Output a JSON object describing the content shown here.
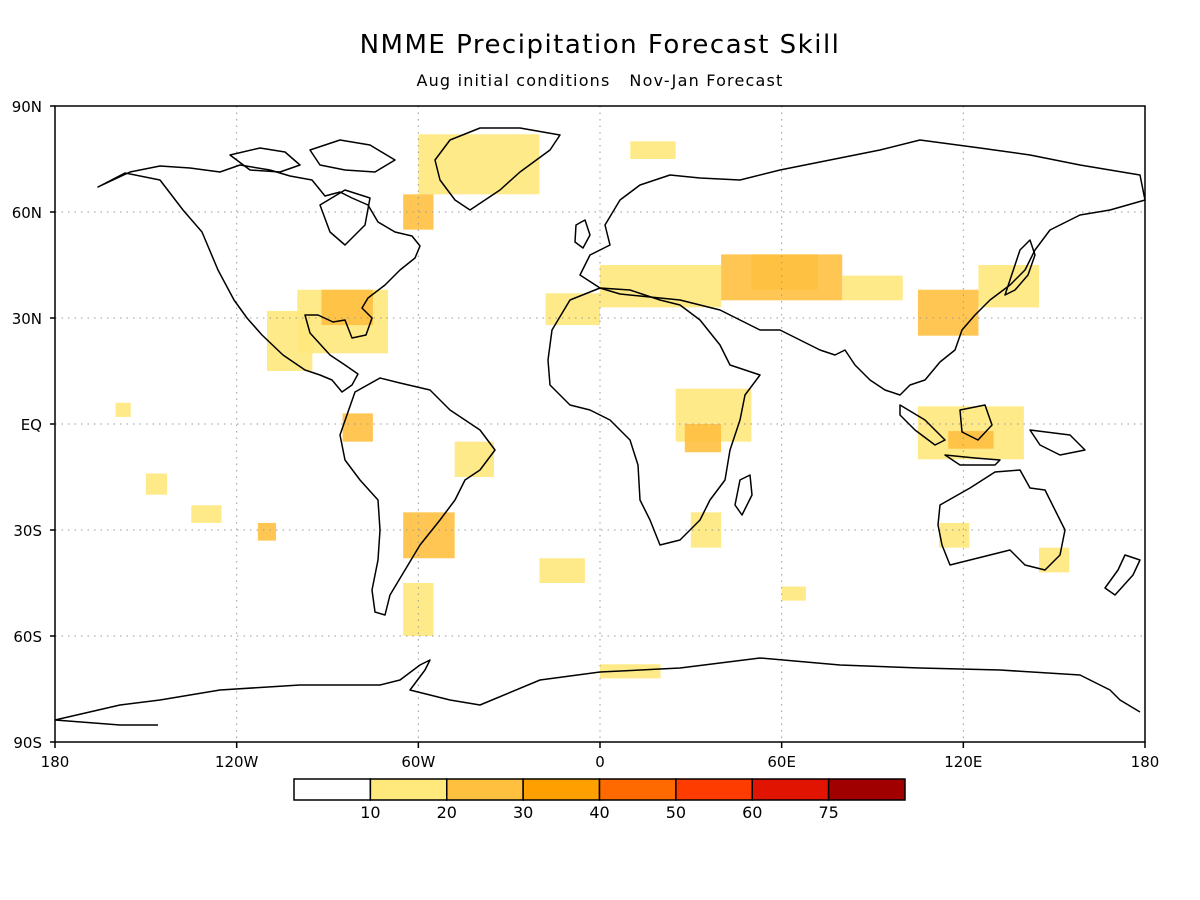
{
  "chart_data": {
    "type": "heatmap",
    "title": "NMME Precipitation Forecast Skill",
    "subtitle": "Aug initial conditions   Nov-Jan Forecast",
    "xlabel": "",
    "ylabel": "",
    "x_ticks": [
      "180",
      "120W",
      "60W",
      "0",
      "60E",
      "120E",
      "180"
    ],
    "y_ticks": [
      "90N",
      "60N",
      "30N",
      "EQ",
      "30S",
      "60S",
      "90S"
    ],
    "xlim": [
      -180,
      180
    ],
    "ylim": [
      -90,
      90
    ],
    "grid": true,
    "colorbar": {
      "placement": "bottom",
      "levels": [
        "10",
        "20",
        "30",
        "40",
        "50",
        "60",
        "75"
      ],
      "colors": [
        "#ffffff",
        "#ffe87c",
        "#ffc040",
        "#ffa000",
        "#ff6a00",
        "#ff3c00",
        "#e01400",
        "#a00000"
      ]
    },
    "skill_regions": [
      {
        "lon": [
          -100,
          -70
        ],
        "lat": [
          20,
          38
        ],
        "level": 1
      },
      {
        "lon": [
          -92,
          -75
        ],
        "lat": [
          28,
          38
        ],
        "level": 2
      },
      {
        "lon": [
          -110,
          -95
        ],
        "lat": [
          15,
          32
        ],
        "level": 1
      },
      {
        "lon": [
          -60,
          -20
        ],
        "lat": [
          65,
          82
        ],
        "level": 1
      },
      {
        "lon": [
          -65,
          -55
        ],
        "lat": [
          55,
          65
        ],
        "level": 2
      },
      {
        "lon": [
          -85,
          -75
        ],
        "lat": [
          -5,
          3
        ],
        "level": 2
      },
      {
        "lon": [
          -160,
          -155
        ],
        "lat": [
          2,
          6
        ],
        "level": 1
      },
      {
        "lon": [
          -150,
          -143
        ],
        "lat": [
          -20,
          -14
        ],
        "level": 1
      },
      {
        "lon": [
          -135,
          -125
        ],
        "lat": [
          -28,
          -23
        ],
        "level": 1
      },
      {
        "lon": [
          -113,
          -107
        ],
        "lat": [
          -33,
          -28
        ],
        "level": 2
      },
      {
        "lon": [
          -65,
          -48
        ],
        "lat": [
          -38,
          -25
        ],
        "level": 2
      },
      {
        "lon": [
          -48,
          -35
        ],
        "lat": [
          -15,
          -5
        ],
        "level": 1
      },
      {
        "lon": [
          -65,
          -55
        ],
        "lat": [
          -60,
          -45
        ],
        "level": 1
      },
      {
        "lon": [
          -18,
          0
        ],
        "lat": [
          28,
          37
        ],
        "level": 1
      },
      {
        "lon": [
          0,
          40
        ],
        "lat": [
          33,
          45
        ],
        "level": 1
      },
      {
        "lon": [
          40,
          80
        ],
        "lat": [
          35,
          48
        ],
        "level": 2
      },
      {
        "lon": [
          50,
          72
        ],
        "lat": [
          38,
          48
        ],
        "level": 2
      },
      {
        "lon": [
          80,
          100
        ],
        "lat": [
          35,
          42
        ],
        "level": 1
      },
      {
        "lon": [
          105,
          125
        ],
        "lat": [
          25,
          38
        ],
        "level": 2
      },
      {
        "lon": [
          125,
          145
        ],
        "lat": [
          33,
          45
        ],
        "level": 1
      },
      {
        "lon": [
          25,
          50
        ],
        "lat": [
          -5,
          10
        ],
        "level": 1
      },
      {
        "lon": [
          28,
          40
        ],
        "lat": [
          -8,
          0
        ],
        "level": 2
      },
      {
        "lon": [
          105,
          140
        ],
        "lat": [
          -10,
          5
        ],
        "level": 1
      },
      {
        "lon": [
          115,
          130
        ],
        "lat": [
          -7,
          -2
        ],
        "level": 2
      },
      {
        "lon": [
          10,
          25
        ],
        "lat": [
          75,
          80
        ],
        "level": 1
      },
      {
        "lon": [
          -20,
          -5
        ],
        "lat": [
          -45,
          -38
        ],
        "level": 1
      },
      {
        "lon": [
          0,
          20
        ],
        "lat": [
          -72,
          -68
        ],
        "level": 1
      },
      {
        "lon": [
          30,
          40
        ],
        "lat": [
          -35,
          -25
        ],
        "level": 1
      },
      {
        "lon": [
          112,
          122
        ],
        "lat": [
          -35,
          -28
        ],
        "level": 1
      },
      {
        "lon": [
          145,
          155
        ],
        "lat": [
          -42,
          -35
        ],
        "level": 1
      },
      {
        "lon": [
          60,
          68
        ],
        "lat": [
          -50,
          -46
        ],
        "level": 1
      }
    ]
  }
}
